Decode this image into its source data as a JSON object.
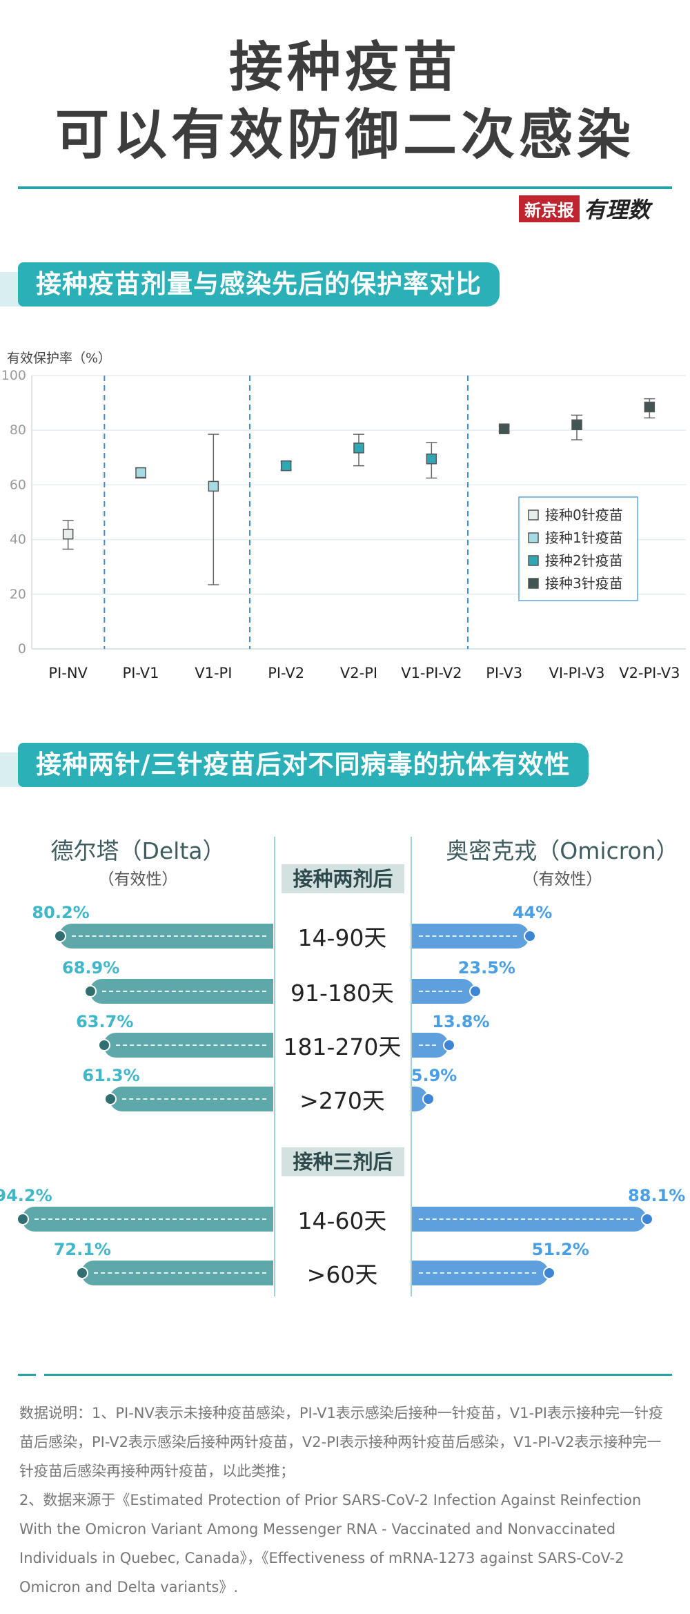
{
  "header": {
    "title_line1": "接种疫苗",
    "title_line2": "可以有效防御二次感染",
    "brand_red": "新京报",
    "brand_script": "有理数"
  },
  "section1": {
    "title": "接种疫苗剂量与感染先后的保护率对比"
  },
  "section2": {
    "title": "接种两针/三针疫苗后对不同病毒的抗体有效性"
  },
  "colors": {
    "accent": "#2aa2ab",
    "dose0": "#e8eeee",
    "dose1": "#a7dbe3",
    "dose2": "#2fa8b3",
    "dose3": "#415654",
    "delta_bar": "#5fa8aa",
    "omicron_bar": "#5e9fde"
  },
  "chart_data": [
    {
      "type": "scatter",
      "ylabel": "有效保护率（%）",
      "ylim": [
        0,
        100
      ],
      "yticks": [
        "0",
        "20",
        "40",
        "60",
        "80",
        "100"
      ],
      "grid": true,
      "legend_position": "right",
      "categories": [
        "PI-NV",
        "PI-V1",
        "V1-PI",
        "PI-V2",
        "V2-PI",
        "V1-PI-V2",
        "PI-V3",
        "VI-PI-V3",
        "V2-PI-V3"
      ],
      "series": [
        {
          "name": "接种0针疫苗",
          "points": [
            {
              "x": "PI-NV",
              "y": 42,
              "low": 36.5,
              "high": 47
            }
          ]
        },
        {
          "name": "接种1针疫苗",
          "points": [
            {
              "x": "PI-V1",
              "y": 64.5,
              "low": 62.5,
              "high": 66
            },
            {
              "x": "V1-PI",
              "y": 59.5,
              "low": 23.5,
              "high": 78.5
            }
          ]
        },
        {
          "name": "接种2针疫苗",
          "points": [
            {
              "x": "PI-V2",
              "y": 67,
              "low": 65.5,
              "high": 68.5
            },
            {
              "x": "V2-PI",
              "y": 73.5,
              "low": 67,
              "high": 78.5
            },
            {
              "x": "V1-PI-V2",
              "y": 69.5,
              "low": 62.5,
              "high": 75.5
            }
          ]
        },
        {
          "name": "接种3针疫苗",
          "points": [
            {
              "x": "PI-V3",
              "y": 80.5,
              "low": 79.5,
              "high": 81.5
            },
            {
              "x": "VI-PI-V3",
              "y": 82,
              "low": 76.5,
              "high": 85.5
            },
            {
              "x": "V2-PI-V3",
              "y": 88.5,
              "low": 84.5,
              "high": 91.5
            }
          ]
        }
      ],
      "dividers_after": [
        "PI-NV",
        "V1-PI",
        "V1-PI-V2"
      ]
    },
    {
      "type": "bar",
      "left_header": "德尔塔（Delta）",
      "right_header": "奥密克戎（Omicron）",
      "sub_header": "（有效性）",
      "groups": [
        {
          "stage": "接种两剂后",
          "rows": [
            {
              "period": "14-90天",
              "delta": 80.2,
              "delta_label": "80.2%",
              "omicron": 44,
              "omicron_label": "44%"
            },
            {
              "period": "91-180天",
              "delta": 68.9,
              "delta_label": "68.9%",
              "omicron": 23.5,
              "omicron_label": "23.5%"
            },
            {
              "period": "181-270天",
              "delta": 63.7,
              "delta_label": "63.7%",
              "omicron": 13.8,
              "omicron_label": "13.8%"
            },
            {
              "period": ">270天",
              "delta": 61.3,
              "delta_label": "61.3%",
              "omicron": 5.9,
              "omicron_label": "5.9%"
            }
          ]
        },
        {
          "stage": "接种三剂后",
          "rows": [
            {
              "period": "14-60天",
              "delta": 94.2,
              "delta_label": "94.2%",
              "omicron": 88.1,
              "omicron_label": "88.1%"
            },
            {
              "period": ">60天",
              "delta": 72.1,
              "delta_label": "72.1%",
              "omicron": 51.2,
              "omicron_label": "51.2%"
            }
          ]
        }
      ]
    }
  ],
  "notes": {
    "line1": "数据说明：1、PI-NV表示未接种疫苗感染，PI-V1表示感染后接种一针疫苗，V1-PI表示接种完一针疫苗后感染，PI-V2表示感染后接种两针疫苗，V2-PI表示接种两针疫苗后感染，V1-PI-V2表示接种完一针疫苗后感染再接种两针疫苗，以此类推；",
    "line2": "2、数据来源于《Estimated Protection of Prior SARS-CoV-2 Infection Against Reinfection With the Omicron Variant Among Messenger RNA - Vaccinated and Nonvaccinated Individuals in Quebec, Canada》，《Effectiveness of mRNA-1273 against SARS-CoV-2 Omicron and Delta variants》."
  }
}
